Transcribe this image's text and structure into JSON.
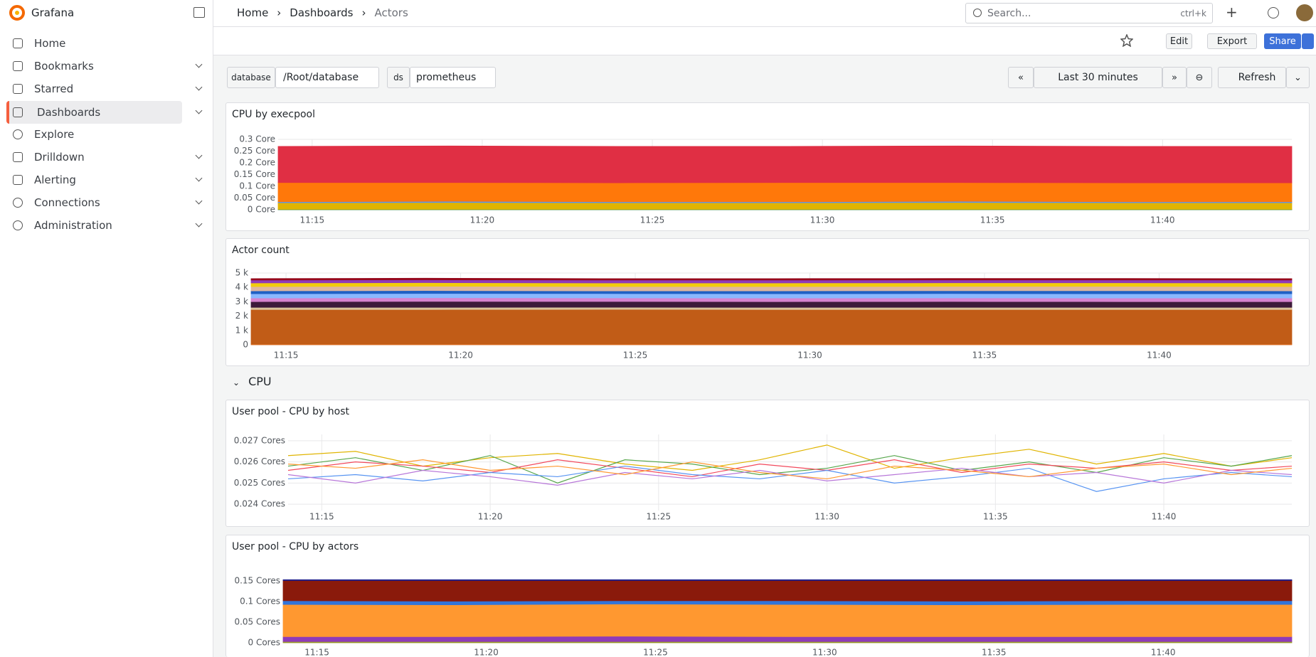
{
  "app": {
    "name": "Grafana"
  },
  "nav": {
    "items": [
      "Home",
      "Bookmarks",
      "Starred",
      "Dashboards",
      "Explore",
      "Drilldown",
      "Alerting",
      "Connections",
      "Administration"
    ]
  },
  "breadcrumbs": [
    "Home",
    "Dashboards",
    "Actors"
  ],
  "search": {
    "placeholder": "Search...",
    "shortcut": "ctrl+k"
  },
  "toolbar": {
    "edit": "Edit",
    "export": "Export",
    "share": "Share"
  },
  "variables": [
    {
      "label": "database",
      "value": "/Root/database"
    },
    {
      "label": "ds",
      "value": "prometheus"
    }
  ],
  "time": {
    "range": "Last 30 minutes",
    "refresh": "Refresh"
  },
  "row": {
    "title": "CPU"
  },
  "panels": [
    {
      "title": "CPU by execpool",
      "type": "stacked_area",
      "ylim": [
        0,
        0.3
      ],
      "yticks": [
        {
          "value": 0,
          "label": "0 Core"
        },
        {
          "value": 0.05,
          "label": "0.05 Core"
        },
        {
          "value": 0.1,
          "label": "0.1 Core"
        },
        {
          "value": 0.15,
          "label": "0.15 Core"
        },
        {
          "value": 0.2,
          "label": "0.2 Core"
        },
        {
          "value": 0.25,
          "label": "0.25 Core"
        },
        {
          "value": 0.3,
          "label": "0.3 Core"
        }
      ],
      "xlim": [
        674,
        703.8
      ],
      "xticks": [
        {
          "value": 675,
          "label": "11:15"
        },
        {
          "value": 680,
          "label": "11:20"
        },
        {
          "value": 685,
          "label": "11:25"
        },
        {
          "value": 690,
          "label": "11:30"
        },
        {
          "value": 695,
          "label": "11:35"
        },
        {
          "value": 700,
          "label": "11:40"
        }
      ],
      "x": [
        674,
        679,
        684,
        689,
        694,
        699,
        703.8
      ],
      "series": [
        {
          "color": "#37872d",
          "values": [
            0.002,
            0.002,
            0.002,
            0.002,
            0.002,
            0.002,
            0.002
          ]
        },
        {
          "color": "#e0b400",
          "values": [
            0.028,
            0.029,
            0.028,
            0.028,
            0.029,
            0.028,
            0.028
          ]
        },
        {
          "color": "#5794f2",
          "values": [
            0.004,
            0.005,
            0.004,
            0.004,
            0.005,
            0.004,
            0.004
          ]
        },
        {
          "color": "#ff780a",
          "values": [
            0.082,
            0.08,
            0.081,
            0.082,
            0.08,
            0.081,
            0.081
          ]
        },
        {
          "color": "#e02f44",
          "values": [
            0.154,
            0.156,
            0.155,
            0.154,
            0.156,
            0.155,
            0.155
          ]
        }
      ]
    },
    {
      "title": "Actor count",
      "type": "stacked_area",
      "ylim": [
        0,
        5000
      ],
      "yticks": [
        {
          "value": 0,
          "label": "0"
        },
        {
          "value": 1000,
          "label": "1 k"
        },
        {
          "value": 2000,
          "label": "2 k"
        },
        {
          "value": 3000,
          "label": "3 k"
        },
        {
          "value": 4000,
          "label": "4 k"
        },
        {
          "value": 5000,
          "label": "5 k"
        }
      ],
      "xlim": [
        674,
        703.8
      ],
      "xticks": [
        {
          "value": 675,
          "label": "11:15"
        },
        {
          "value": 680,
          "label": "11:20"
        },
        {
          "value": 685,
          "label": "11:25"
        },
        {
          "value": 690,
          "label": "11:30"
        },
        {
          "value": 695,
          "label": "11:35"
        },
        {
          "value": 700,
          "label": "11:40"
        }
      ],
      "x": [
        674,
        679,
        684,
        689,
        694,
        699,
        703.8
      ],
      "series": [
        {
          "color": "#e0752d",
          "values": [
            60,
            60,
            60,
            60,
            60,
            60,
            60
          ]
        },
        {
          "color": "#c15c17",
          "values": [
            2400,
            2400,
            2410,
            2400,
            2400,
            2400,
            2400
          ]
        },
        {
          "color": "#d9c29a",
          "values": [
            150,
            150,
            150,
            150,
            150,
            150,
            150
          ]
        },
        {
          "color": "#3d1a3a",
          "values": [
            400,
            420,
            400,
            400,
            410,
            400,
            400
          ]
        },
        {
          "color": "#d683ce",
          "values": [
            250,
            250,
            250,
            250,
            250,
            250,
            250
          ]
        },
        {
          "color": "#8ab8ff",
          "values": [
            300,
            300,
            300,
            300,
            300,
            300,
            300
          ]
        },
        {
          "color": "#1f60c4",
          "values": [
            200,
            200,
            190,
            200,
            200,
            210,
            200
          ]
        },
        {
          "color": "#deb6a0",
          "values": [
            300,
            300,
            300,
            300,
            300,
            300,
            300
          ]
        },
        {
          "color": "#f2cc0c",
          "values": [
            250,
            250,
            250,
            250,
            250,
            250,
            250
          ]
        },
        {
          "color": "#8f3bb8",
          "values": [
            200,
            200,
            200,
            200,
            200,
            200,
            200
          ]
        },
        {
          "color": "#96081d",
          "values": [
            100,
            110,
            100,
            100,
            100,
            100,
            100
          ]
        }
      ]
    },
    {
      "title": "User pool - CPU by host",
      "type": "line",
      "ylim": [
        0.0237,
        0.0273
      ],
      "yticks": [
        {
          "value": 0.024,
          "label": "0.024 Cores"
        },
        {
          "value": 0.025,
          "label": "0.025 Cores"
        },
        {
          "value": 0.026,
          "label": "0.026 Cores"
        },
        {
          "value": 0.027,
          "label": "0.027 Cores"
        }
      ],
      "xlim": [
        674,
        703.8
      ],
      "xticks": [
        {
          "value": 675,
          "label": "11:15"
        },
        {
          "value": 680,
          "label": "11:20"
        },
        {
          "value": 685,
          "label": "11:25"
        },
        {
          "value": 690,
          "label": "11:30"
        },
        {
          "value": 695,
          "label": "11:35"
        },
        {
          "value": 700,
          "label": "11:40"
        }
      ],
      "x": [
        674,
        676,
        678,
        680,
        682,
        684,
        686,
        688,
        690,
        692,
        694,
        696,
        698,
        700,
        702,
        703.8
      ],
      "series": [
        {
          "color": "#e0b400",
          "values": [
            0.0263,
            0.0265,
            0.0258,
            0.0262,
            0.0264,
            0.0259,
            0.0256,
            0.0261,
            0.0268,
            0.0257,
            0.0262,
            0.0266,
            0.0259,
            0.0264,
            0.0258,
            0.0262
          ]
        },
        {
          "color": "#56a64b",
          "values": [
            0.0258,
            0.0262,
            0.0256,
            0.0263,
            0.025,
            0.0261,
            0.0259,
            0.0254,
            0.0257,
            0.0263,
            0.0256,
            0.026,
            0.0255,
            0.0262,
            0.0258,
            0.0263
          ]
        },
        {
          "color": "#f2495c",
          "values": [
            0.0256,
            0.026,
            0.0258,
            0.0255,
            0.0261,
            0.0257,
            0.0253,
            0.0259,
            0.0256,
            0.0261,
            0.0255,
            0.0259,
            0.0257,
            0.026,
            0.0256,
            0.0258
          ]
        },
        {
          "color": "#5794f2",
          "values": [
            0.0252,
            0.0254,
            0.0251,
            0.0255,
            0.0253,
            0.0258,
            0.0254,
            0.0252,
            0.0256,
            0.025,
            0.0253,
            0.0257,
            0.0246,
            0.0252,
            0.0255,
            0.0253
          ]
        },
        {
          "color": "#b877d9",
          "values": [
            0.0254,
            0.025,
            0.0256,
            0.0253,
            0.0249,
            0.0255,
            0.0252,
            0.0256,
            0.0251,
            0.0254,
            0.0257,
            0.0253,
            0.0255,
            0.025,
            0.0256,
            0.0254
          ]
        },
        {
          "color": "#ff9830",
          "values": [
            0.0259,
            0.0257,
            0.0261,
            0.0256,
            0.0258,
            0.0254,
            0.026,
            0.0255,
            0.0252,
            0.0258,
            0.0256,
            0.0253,
            0.0257,
            0.0259,
            0.0254,
            0.0257
          ]
        }
      ]
    },
    {
      "title": "User pool - CPU by actors",
      "type": "stacked_area",
      "ylim": [
        0,
        0.15
      ],
      "yticks": [
        {
          "value": 0,
          "label": "0 Cores"
        },
        {
          "value": 0.05,
          "label": "0.05 Cores"
        },
        {
          "value": 0.1,
          "label": "0.1 Cores"
        },
        {
          "value": 0.15,
          "label": "0.15 Cores"
        }
      ],
      "xlim": [
        674,
        703.8
      ],
      "xticks": [
        {
          "value": 675,
          "label": "11:15"
        },
        {
          "value": 680,
          "label": "11:20"
        },
        {
          "value": 685,
          "label": "11:25"
        },
        {
          "value": 690,
          "label": "11:30"
        },
        {
          "value": 695,
          "label": "11:35"
        },
        {
          "value": 700,
          "label": "11:40"
        }
      ],
      "x": [
        674,
        679,
        684,
        689,
        694,
        699,
        703.8
      ],
      "series": [
        {
          "color": "#9a9a2b",
          "values": [
            0.003,
            0.003,
            0.003,
            0.003,
            0.003,
            0.003,
            0.003
          ]
        },
        {
          "color": "#8f3bb8",
          "values": [
            0.012,
            0.012,
            0.013,
            0.012,
            0.012,
            0.012,
            0.012
          ]
        },
        {
          "color": "#ff9830",
          "values": [
            0.078,
            0.077,
            0.078,
            0.078,
            0.077,
            0.078,
            0.078
          ]
        },
        {
          "color": "#3274d9",
          "values": [
            0.009,
            0.009,
            0.008,
            0.009,
            0.009,
            0.009,
            0.009
          ]
        },
        {
          "color": "#8a1a0b",
          "values": [
            0.049,
            0.05,
            0.049,
            0.049,
            0.05,
            0.049,
            0.049
          ]
        },
        {
          "color": "#1f1f8a",
          "values": [
            0.002,
            0.002,
            0.002,
            0.002,
            0.002,
            0.002,
            0.002
          ]
        }
      ]
    }
  ]
}
